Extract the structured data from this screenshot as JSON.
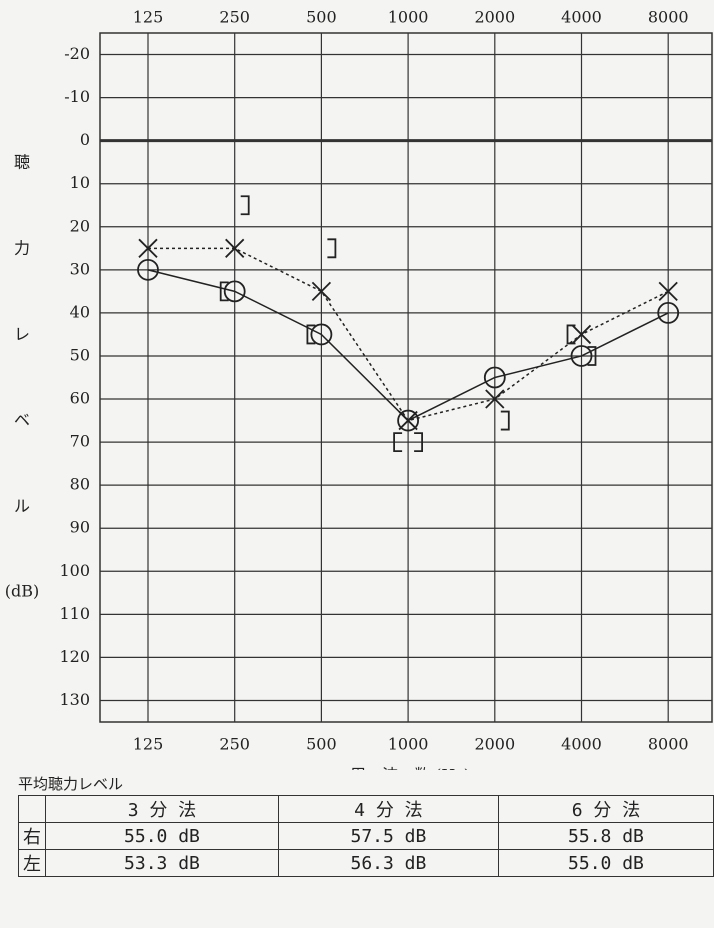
{
  "chart_data": {
    "type": "audiogram",
    "categories": [
      "125",
      "250",
      "500",
      "1000",
      "2000",
      "4000",
      "8000"
    ],
    "y_label_chars": [
      "聴",
      "力",
      "レ",
      "ベ",
      "ル"
    ],
    "y_unit": "(dB)",
    "x_label": "周　波　数 (Hz)",
    "ylim": [
      -25,
      135
    ],
    "yticks": [
      -20,
      -10,
      0,
      10,
      20,
      30,
      40,
      50,
      60,
      70,
      80,
      90,
      100,
      110,
      120,
      130
    ],
    "grid": true,
    "y_inverted": true,
    "series": [
      {
        "color": "#222",
        "marker": "circle",
        "line": "solid",
        "values": [
          30,
          35,
          45,
          65,
          55,
          50,
          40
        ]
      },
      {
        "color": "#222",
        "marker": "x",
        "line": "dotted",
        "values": [
          25,
          25,
          35,
          65,
          60,
          45,
          35
        ]
      },
      {
        "color": "#222",
        "marker": "[",
        "line": "none",
        "values": [
          null,
          35,
          45,
          70,
          null,
          45,
          null
        ]
      },
      {
        "color": "#222",
        "marker": "]",
        "line": "none",
        "values": [
          null,
          15,
          25,
          70,
          65,
          50,
          null
        ]
      }
    ]
  },
  "table": {
    "title": "平均聴力レベル",
    "header": [
      "",
      "3 分 法",
      "4 分 法",
      "6 分 法"
    ],
    "rows": [
      [
        "右",
        "55.0 dB",
        "57.5 dB",
        "55.8 dB"
      ],
      [
        "左",
        "53.3 dB",
        "56.3 dB",
        "55.0 dB"
      ]
    ]
  }
}
